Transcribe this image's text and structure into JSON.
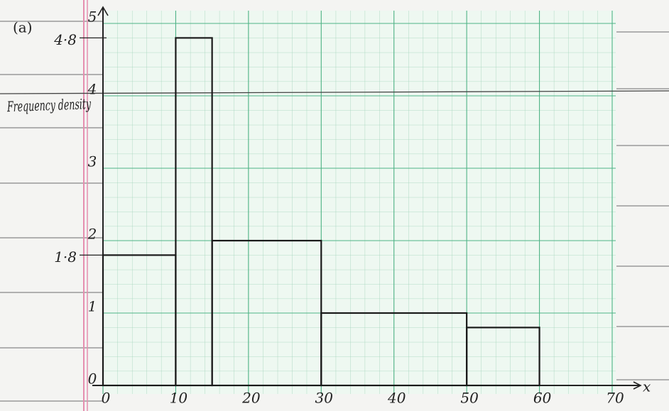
{
  "chart_data": {
    "type": "histogram",
    "part_label": "(a)",
    "ylabel": "Frequency density",
    "xlabel": "x",
    "bins": [
      0,
      10,
      15,
      30,
      50,
      60
    ],
    "values": [
      1.8,
      4.8,
      2,
      1,
      0.8
    ],
    "color": "#1a1a1a",
    "xlim": [
      0,
      70
    ],
    "xticks": [
      0,
      10,
      20,
      30,
      40,
      50,
      60,
      70
    ],
    "ylim": [
      0,
      5
    ],
    "yticks": [
      0,
      1,
      2,
      3,
      4,
      5
    ],
    "y_marked_values": [
      {
        "value": 1.8,
        "label": "1·8"
      },
      {
        "value": 4.8,
        "label": "4·8"
      }
    ],
    "grid": true
  }
}
